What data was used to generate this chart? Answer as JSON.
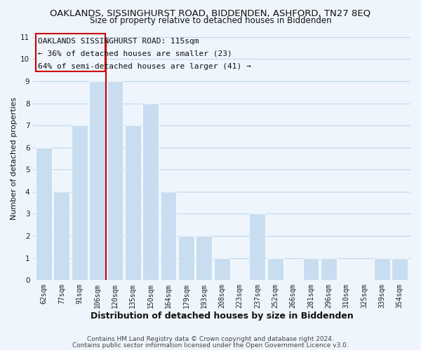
{
  "title": "OAKLANDS, SISSINGHURST ROAD, BIDDENDEN, ASHFORD, TN27 8EQ",
  "subtitle": "Size of property relative to detached houses in Biddenden",
  "xlabel": "Distribution of detached houses by size in Biddenden",
  "ylabel": "Number of detached properties",
  "bar_labels": [
    "62sqm",
    "77sqm",
    "91sqm",
    "106sqm",
    "120sqm",
    "135sqm",
    "150sqm",
    "164sqm",
    "179sqm",
    "193sqm",
    "208sqm",
    "223sqm",
    "237sqm",
    "252sqm",
    "266sqm",
    "281sqm",
    "296sqm",
    "310sqm",
    "325sqm",
    "339sqm",
    "354sqm"
  ],
  "bar_values": [
    6,
    4,
    7,
    9,
    9,
    7,
    8,
    4,
    2,
    2,
    1,
    0,
    3,
    1,
    0,
    1,
    1,
    0,
    0,
    1,
    1
  ],
  "bar_color": "#c8ddf0",
  "vline_color": "#cc0000",
  "vline_index": 3.5,
  "marker_label": "OAKLANDS SISSINGHURST ROAD: 115sqm",
  "annotation_line1": "← 36% of detached houses are smaller (23)",
  "annotation_line2": "64% of semi-detached houses are larger (41) →",
  "ylim": [
    0,
    11
  ],
  "yticks": [
    0,
    1,
    2,
    3,
    4,
    5,
    6,
    7,
    8,
    9,
    10,
    11
  ],
  "footer1": "Contains HM Land Registry data © Crown copyright and database right 2024.",
  "footer2": "Contains public sector information licensed under the Open Government Licence v3.0.",
  "bg_color": "#eef5fc",
  "grid_color": "#c0d8ec",
  "title_fontsize": 9.5,
  "subtitle_fontsize": 8.5,
  "xlabel_fontsize": 9,
  "ylabel_fontsize": 8,
  "tick_fontsize": 7,
  "annot_fontsize": 8,
  "footer_fontsize": 6.5
}
